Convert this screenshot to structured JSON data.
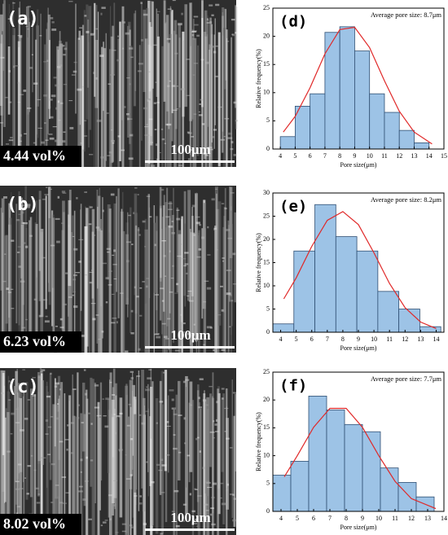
{
  "panels": [
    {
      "label": "(a)",
      "fraction": "4.44 vol%",
      "scale_bar": "100μm"
    },
    {
      "label": "(b)",
      "fraction": "6.23 vol%",
      "scale_bar": "100μm"
    },
    {
      "label": "(c)",
      "fraction": "8.02 vol%",
      "scale_bar": "100μm"
    }
  ],
  "chart_data": [
    {
      "type": "histogram",
      "panel_label": "(d)",
      "annotation": "Average pore size: 8.7μm",
      "x_label": "Pore size(μm)",
      "y_label": "Relative frequency(%)",
      "bins": [
        4,
        5,
        6,
        7,
        8,
        9,
        10,
        11,
        12,
        13,
        14
      ],
      "values": [
        2.2,
        7.6,
        9.8,
        20.7,
        21.7,
        17.4,
        9.8,
        6.5,
        3.3,
        1.1
      ],
      "color": "#9dc3e6",
      "xlim": [
        3.5,
        15
      ],
      "xticks": [
        4,
        5,
        6,
        7,
        8,
        9,
        10,
        11,
        12,
        13,
        14,
        15
      ],
      "ylim": [
        0,
        25
      ],
      "yticks": [
        0,
        5,
        10,
        15,
        20,
        25
      ],
      "fit": {
        "x": [
          4.2,
          5,
          6,
          7,
          8,
          9,
          10,
          11,
          12,
          13,
          14.2
        ],
        "values": [
          3.0,
          5.8,
          10.9,
          16.9,
          21.2,
          21.6,
          18.0,
          12.1,
          6.7,
          3.0,
          0.9
        ],
        "color": "#e02828"
      }
    },
    {
      "type": "histogram",
      "panel_label": "(e)",
      "annotation": "Average pore size: 8.2μm",
      "x_label": "Pore size(μm)",
      "y_label": "Relative frequency(%)",
      "bins": [
        3.5,
        4.85,
        6.2,
        7.55,
        8.9,
        10.25,
        11.6,
        12.95,
        14.3
      ],
      "values": [
        1.8,
        17.5,
        27.5,
        20.6,
        17.5,
        8.8,
        5.0,
        1.2
      ],
      "color": "#9dc3e6",
      "xlim": [
        3.5,
        14.5
      ],
      "xticks": [
        4,
        5,
        6,
        7,
        8,
        9,
        10,
        11,
        12,
        13,
        14
      ],
      "ylim": [
        0,
        30
      ],
      "yticks": [
        0,
        5,
        10,
        15,
        20,
        25,
        30
      ],
      "fit": {
        "x": [
          4.2,
          5,
          6,
          7,
          8,
          9,
          10,
          11,
          12,
          13,
          14
        ],
        "values": [
          7.2,
          11.7,
          18.5,
          24.1,
          26,
          23.2,
          17.1,
          10.5,
          5.3,
          2.2,
          0.8
        ],
        "color": "#e02828"
      }
    },
    {
      "type": "histogram",
      "panel_label": "(f)",
      "annotation": "Average pore size: 7.7μm",
      "x_label": "Pore size(μm)",
      "y_label": "Relative frequency(%)",
      "bins": [
        3.5,
        4.6,
        5.7,
        6.8,
        7.9,
        9.0,
        10.1,
        11.2,
        12.3,
        13.4
      ],
      "values": [
        6.5,
        9.0,
        20.7,
        18.2,
        15.6,
        14.3,
        7.8,
        5.2,
        2.6
      ],
      "color": "#9dc3e6",
      "xlim": [
        3.5,
        14
      ],
      "xticks": [
        4,
        5,
        6,
        7,
        8,
        9,
        10,
        11,
        12,
        13,
        14
      ],
      "ylim": [
        0,
        25
      ],
      "yticks": [
        0,
        5,
        10,
        15,
        20,
        25
      ],
      "fit": {
        "x": [
          4.2,
          5,
          6,
          7,
          8,
          9,
          10,
          11,
          12,
          13.5
        ],
        "values": [
          6.2,
          10.0,
          15.1,
          18.5,
          18.5,
          15.1,
          10.0,
          5.4,
          2.3,
          0.5
        ],
        "color": "#e02828"
      }
    }
  ]
}
